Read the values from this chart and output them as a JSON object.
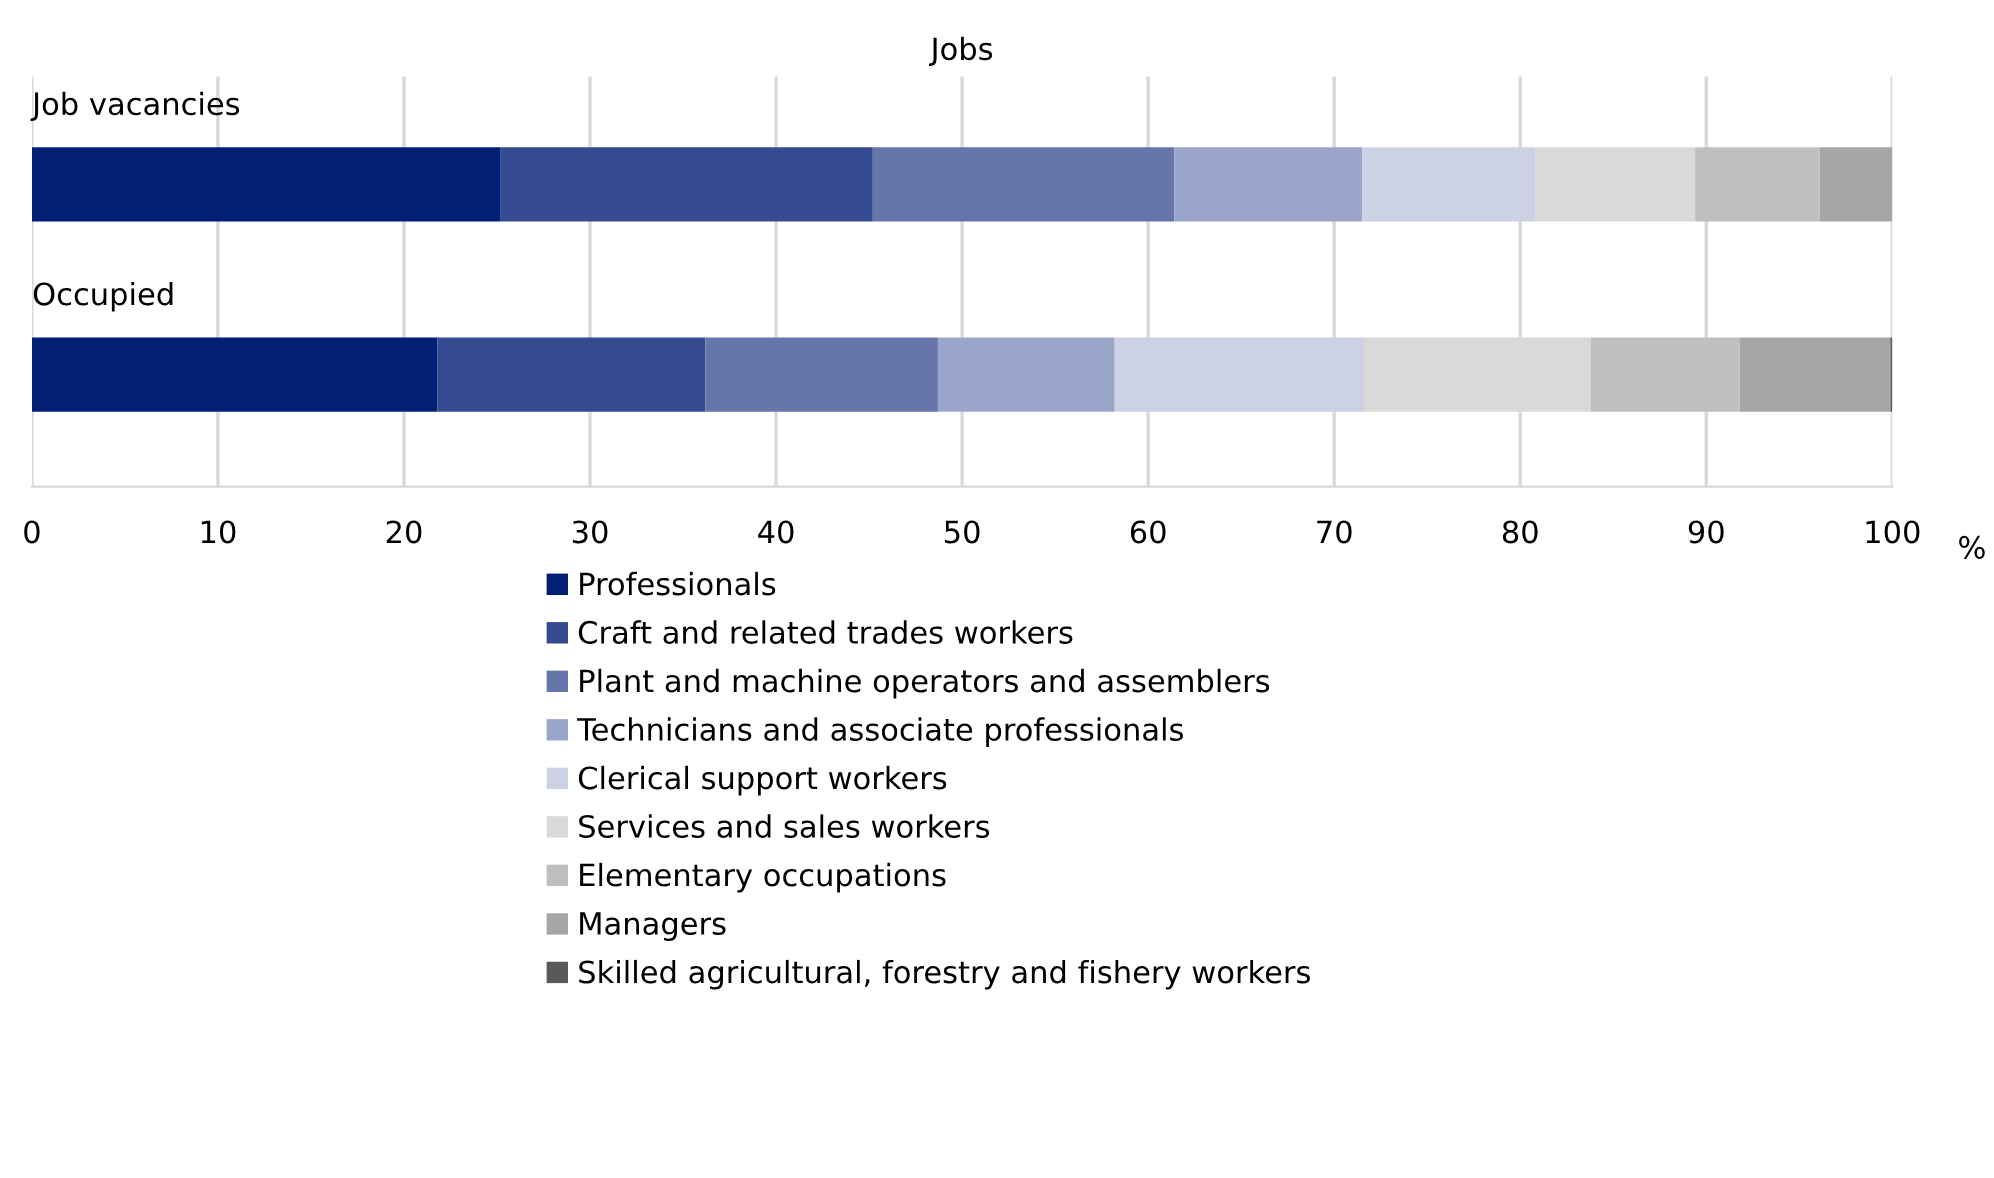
{
  "chart_data": {
    "type": "bar",
    "orientation": "horizontal",
    "stacked": true,
    "title": "Jobs",
    "xlabel": "%",
    "categories": [
      "Job vacancies",
      "Occupied"
    ],
    "series": [
      {
        "name": "Professionals",
        "color": "#001f75",
        "values": [
          25.2,
          21.8
        ]
      },
      {
        "name": "Craft and related trades workers",
        "color": "#344a91",
        "values": [
          20.0,
          14.4
        ]
      },
      {
        "name": "Plant and machine operators and assemblers",
        "color": "#6676aa",
        "values": [
          16.2,
          12.5
        ]
      },
      {
        "name": "Technicians and associate professionals",
        "color": "#99a6c9",
        "values": [
          10.1,
          9.5
        ]
      },
      {
        "name": "Clerical support workers",
        "color": "#ccd2e4",
        "values": [
          9.3,
          13.4
        ]
      },
      {
        "name": "Services and sales workers",
        "color": "#d9d9d9",
        "values": [
          8.6,
          12.2
        ]
      },
      {
        "name": "Elementary occupations",
        "color": "#bfbfbf",
        "values": [
          6.7,
          8.0
        ]
      },
      {
        "name": "Managers",
        "color": "#a6a6a6",
        "values": [
          3.9,
          8.1
        ]
      },
      {
        "name": "Skilled agricultural, forestry and fishery workers",
        "color": "#595959",
        "values": [
          0,
          0.1
        ]
      }
    ],
    "xlim": [
      0,
      100
    ],
    "xticks": [
      0,
      10,
      20,
      30,
      40,
      50,
      60,
      70,
      80,
      90,
      100
    ],
    "grid": "x",
    "legend": "bottom",
    "tick_labels": "x"
  }
}
